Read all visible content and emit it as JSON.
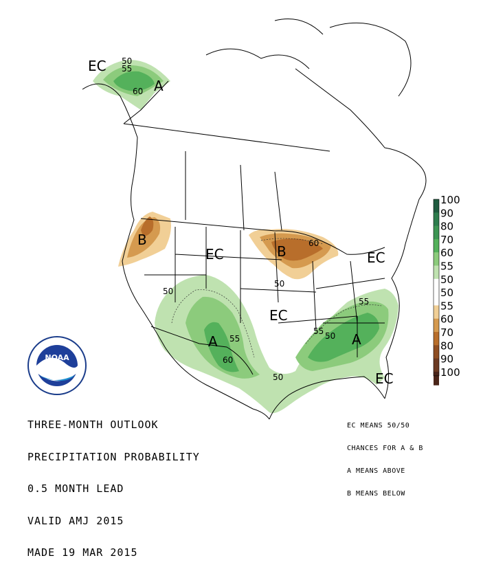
{
  "title_lines": [
    "THREE-MONTH OUTLOOK",
    "PRECIPITATION PROBABILITY",
    "0.5 MONTH LEAD",
    "VALID AMJ 2015",
    "MADE 19 MAR 2015"
  ],
  "notes": [
    "EC MEANS 50/50",
    "CHANCES FOR A & B",
    "A MEANS ABOVE",
    "B MEANS BELOW"
  ],
  "logo": {
    "text": "NOAA",
    "ring_text": "NATIONAL OCEANIC AND ATMOSPHERIC ADMINISTRATION · U.S. DEPARTMENT OF COMMERCE"
  },
  "legend": {
    "labels": [
      "100",
      "90",
      "80",
      "70",
      "60",
      "55",
      "50",
      "50",
      "55",
      "60",
      "70",
      "80",
      "90",
      "100"
    ],
    "colors": [
      "#1f5b3f",
      "#2e7d4d",
      "#3d9553",
      "#54b15b",
      "#8ccb7c",
      "#bfe2b0",
      "#ffffff",
      "#ffffff",
      "#f1cf96",
      "#d59a4f",
      "#b86e2b",
      "#8f4e22",
      "#6b3a22",
      "#4a2519"
    ]
  },
  "map_labels": {
    "ec_alaska": "EC",
    "a_alaska": "A",
    "n50_alaska": "50",
    "n55_alaska": "55",
    "n60_alaska": "60",
    "b_northwest": "B",
    "b_greatlakes": "B",
    "n60_greatlakes": "60",
    "n50_greatlakes": "50",
    "ec_north": "EC",
    "ec_northeast": "EC",
    "ec_central": "EC",
    "ec_florida": "EC",
    "a_southwest": "A",
    "n50_southwest": "50",
    "n55_southwest": "55",
    "n60_southwest": "60",
    "n50_gulf": "50",
    "a_southeast": "A",
    "n50_southeast": "50",
    "n55_southeast": "55",
    "n55_southeast2": "55"
  },
  "colors": {
    "above_light": "#bfe2b0",
    "above_mid": "#8ccb7c",
    "above_dark": "#54b15b",
    "below_light": "#f1cf96",
    "below_mid": "#d59a4f",
    "below_dark": "#b86e2b"
  }
}
